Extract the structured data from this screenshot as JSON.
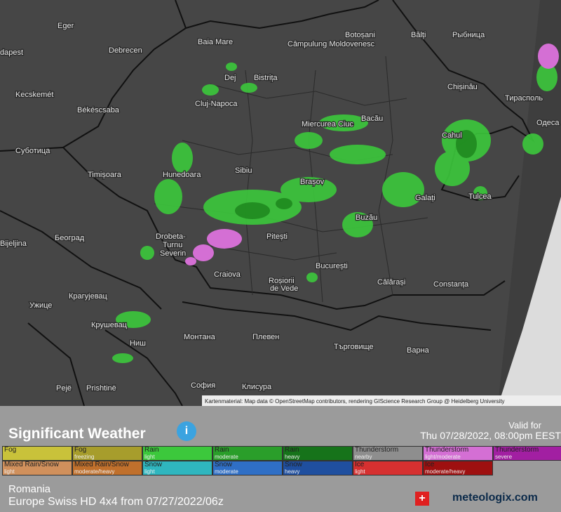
{
  "map": {
    "cities": [
      "Eger",
      "dapest",
      "Debrecen",
      "Baia Mare",
      "Câmpulung Moldovenesc",
      "Botoșani",
      "Bălți",
      "Рыбница",
      "Kecskemét",
      "Dej",
      "Bistrița",
      "Cluj-Napoca",
      "Chișinău",
      "Тирасполь",
      "Békéscsaba",
      "Miercurea Ciuc",
      "Bacău",
      "Одеса",
      "Суботица",
      "Cahul",
      "Timișoara",
      "Hunedoara",
      "Sibiu",
      "Brașov",
      "Galați",
      "Tulcea",
      "Buzău",
      "Bijeljina",
      "Београд",
      "Drobeta-",
      "Turnu",
      "Severin",
      "Pitești",
      "Craiova",
      "București",
      "Călărași",
      "Constanța",
      "Roșiorii",
      "de Vede",
      "Ужице",
      "Крагујевац",
      "Крушевац",
      "Ниш",
      "Монтана",
      "Плевен",
      "Търговище",
      "Варна",
      "Pejë",
      "Prishtinë",
      "София",
      "Клисура"
    ],
    "attribution": "Kartenmaterial: Map data © OpenStreetMap contributors, rendering GIScience Research Group @ Heidelberg University"
  },
  "panel": {
    "title": "Significant Weather",
    "valid_label": "Valid for",
    "valid_time": "Thu 07/28/2022, 08:00pm EEST",
    "legend": [
      {
        "label": "Fog",
        "color": "#c9c23a"
      },
      {
        "label": "Fog",
        "sub": "freezing",
        "color": "#a79d2c"
      },
      {
        "label": "Rain",
        "sub": "light",
        "color": "#3cc83c"
      },
      {
        "label": "Rain",
        "sub": "moderate",
        "color": "#2a9e2a"
      },
      {
        "label": "Rain",
        "sub": "heavy",
        "color": "#16731a"
      },
      {
        "label": "Thunderstorm",
        "sub": "nearby",
        "color": "#8e8e8e"
      },
      {
        "label": "Thunderstorm",
        "sub": "light/moderate",
        "color": "#d46fd4"
      },
      {
        "label": "Thunderstorm",
        "sub": "severe",
        "color": "#a21fa2"
      },
      {
        "label": "Mixed Rain/Snow",
        "sub": "light",
        "color": "#d0905c"
      },
      {
        "label": "Mixed Rain/Snow",
        "sub": "moderate/heavy",
        "color": "#c0702c"
      },
      {
        "label": "Snow",
        "sub": "light",
        "color": "#2fb6bf"
      },
      {
        "label": "Snow",
        "sub": "moderate",
        "color": "#2f6fc6"
      },
      {
        "label": "Snow",
        "sub": "heavy",
        "color": "#1f4f9f"
      },
      {
        "label": "Ice",
        "sub": "light",
        "color": "#d63030"
      },
      {
        "label": "Ice",
        "sub": "moderate/heavy",
        "color": "#9e1010"
      }
    ],
    "region": "Romania",
    "model": "Europe Swiss HD 4x4 from 07/27/2022/06z",
    "logo": "meteologix.com"
  }
}
